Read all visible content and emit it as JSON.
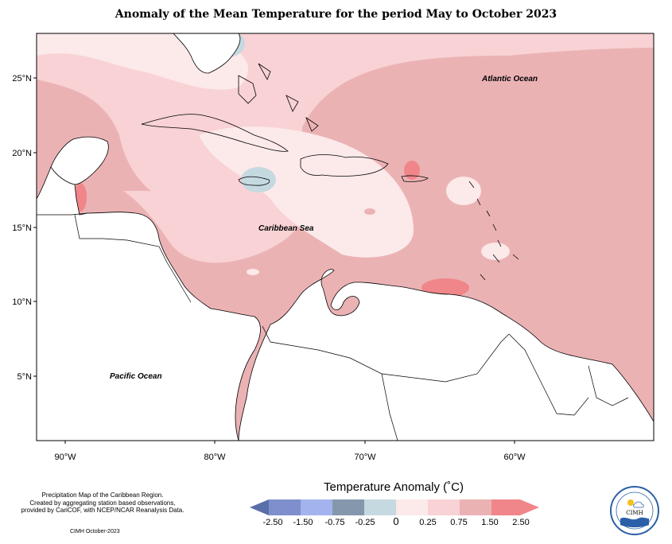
{
  "title": "Anomaly of the Mean Temperature for the period May to October 2023",
  "map": {
    "lon_range": [
      -92,
      -51
    ],
    "lat_range": [
      1,
      28
    ],
    "lon_ticks": [
      "90°W",
      "80°W",
      "70°W",
      "60°W"
    ],
    "lat_ticks": [
      "25°N",
      "20°N",
      "15°N",
      "10°N",
      "5°N"
    ],
    "ocean_labels": [
      "Atlantic Ocean",
      "Caribbean Sea",
      "Pacific Ocean"
    ]
  },
  "legend": {
    "title": "Temperature Anomaly (˚C)",
    "tick_labels": [
      "-2.50",
      "-1.50",
      "-0.75",
      "-0.25",
      "0",
      "0.25",
      "0.75",
      "1.50",
      "2.50"
    ],
    "colors": [
      "#5a6ea8",
      "#7d8fcc",
      "#a3b3ee",
      "#8597ad",
      "#c5d9e0",
      "#fce9e9",
      "#f8d2d4",
      "#ebb2b4",
      "#f08689"
    ]
  },
  "footer": {
    "line1": "Precipitation Map of the Caribbean Region.",
    "line2": "Created by aggregating station based observations,",
    "line3": "provided by CariCOF, with NCEP/NCAR Reanalysis Data.",
    "date": "CIMH October-2023"
  },
  "logo": {
    "text": "CIMH"
  }
}
